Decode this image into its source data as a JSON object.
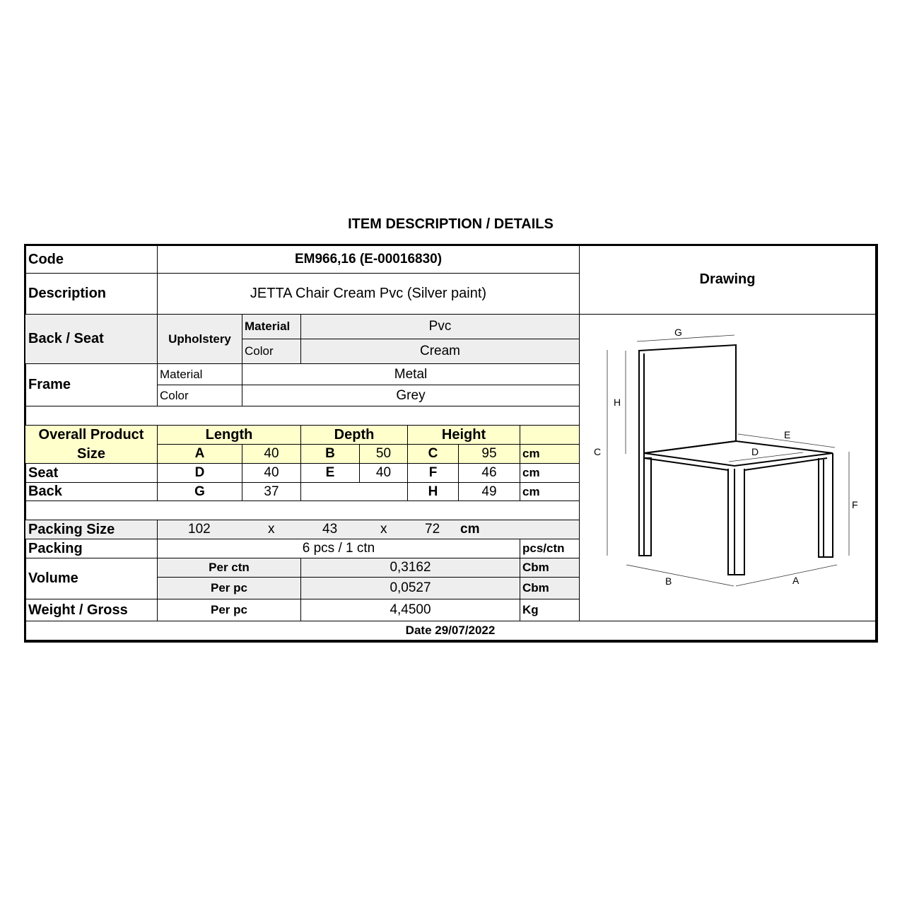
{
  "title": "ITEM DESCRIPTION / DETAILS",
  "code": {
    "label": "Code",
    "value": "EM966,16 (E-00016830)"
  },
  "description": {
    "label": "Description",
    "value": "JETTA Chair Cream Pvc (Silver paint)"
  },
  "drawing": {
    "label": "Drawing",
    "dimension_labels": [
      "A",
      "B",
      "C",
      "D",
      "E",
      "F",
      "G",
      "H"
    ]
  },
  "back_seat": {
    "label": "Back / Seat",
    "sub": "Upholstery",
    "material_label": "Material",
    "material": "Pvc",
    "color_label": "Color",
    "color": "Cream"
  },
  "frame": {
    "label": "Frame",
    "material_label": "Material",
    "material": "Metal",
    "color_label": "Color",
    "color": "Grey"
  },
  "size": {
    "label": "Overall Product Size",
    "length": "Length",
    "depth": "Depth",
    "height": "Height",
    "overall": {
      "a": "A",
      "a_val": "40",
      "b": "B",
      "b_val": "50",
      "c": "C",
      "c_val": "95",
      "unit": "cm"
    },
    "seat": {
      "label": "Seat",
      "d": "D",
      "d_val": "40",
      "e": "E",
      "e_val": "40",
      "f": "F",
      "f_val": "46",
      "unit": "cm"
    },
    "back": {
      "label": "Back",
      "g": "G",
      "g_val": "37",
      "h": "H",
      "h_val": "49",
      "unit": "cm"
    }
  },
  "packing_size": {
    "label": "Packing Size",
    "l": "102",
    "x1": "x",
    "w": "43",
    "x2": "x",
    "h": "72",
    "unit": "cm"
  },
  "packing": {
    "label": "Packing",
    "value": "6 pcs / 1 ctn",
    "unit": "pcs/ctn"
  },
  "volume": {
    "label": "Volume",
    "per_ctn_label": "Per ctn",
    "per_ctn": "0,3162",
    "per_ctn_unit": "Cbm",
    "per_pc_label": "Per pc",
    "per_pc": "0,0527",
    "per_pc_unit": "Cbm"
  },
  "weight": {
    "label": "Weight / Gross",
    "per_pc_label": "Per pc",
    "value": "4,4500",
    "unit": "Kg"
  },
  "date": "Date 29/07/2022",
  "colors": {
    "header_yellow": "#ffffcc",
    "gray": "#eeeeee"
  }
}
